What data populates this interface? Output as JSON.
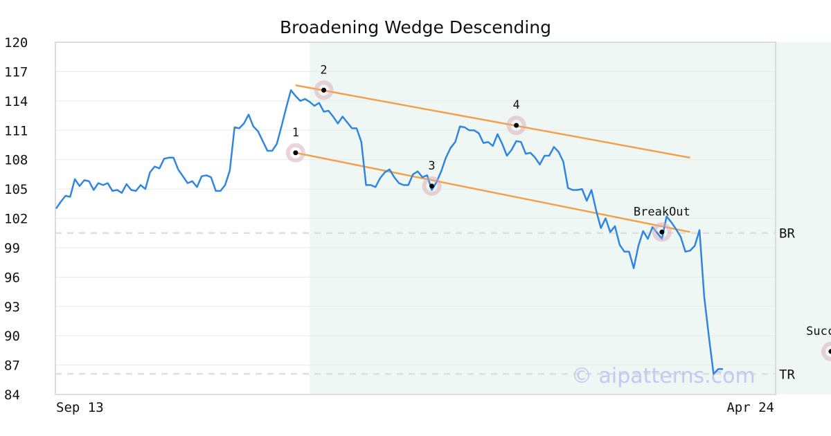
{
  "chart_data": {
    "type": "line",
    "title": "Broadening Wedge Descending",
    "xlabel": "",
    "ylabel": "",
    "x_tick_labels": [
      "Sep 13",
      "Apr 24"
    ],
    "y_ticks": [
      "84",
      "87",
      "90",
      "93",
      "96",
      "99",
      "102",
      "105",
      "108",
      "111",
      "114",
      "117",
      "120"
    ],
    "ylim": [
      84,
      120
    ],
    "grid": "horizontal",
    "shaded_region_index": [
      54,
      179
    ],
    "series": [
      {
        "color": "#2f86e0",
        "values": [
          103.0,
          103.7,
          104.3,
          104.2,
          106.0,
          105.3,
          105.9,
          105.8,
          104.9,
          105.6,
          105.4,
          105.6,
          104.8,
          104.9,
          104.6,
          105.5,
          104.9,
          104.8,
          105.4,
          105.0,
          106.7,
          107.3,
          107.1,
          108.1,
          108.2,
          108.2,
          107.0,
          106.3,
          105.6,
          105.8,
          105.2,
          106.3,
          106.4,
          106.2,
          104.8,
          104.8,
          105.4,
          106.9,
          111.3,
          111.2,
          111.7,
          112.6,
          111.4,
          110.9,
          109.9,
          108.9,
          108.9,
          109.6,
          111.4,
          113.3,
          115.1,
          114.5,
          114.0,
          114.2,
          113.9,
          113.5,
          113.8,
          112.9,
          113.0,
          112.4,
          111.7,
          112.4,
          111.8,
          111.2,
          111.2,
          109.8,
          105.4,
          105.4,
          105.2,
          106.1,
          106.7,
          107.0,
          106.2,
          105.6,
          105.4,
          105.4,
          106.5,
          106.8,
          106.2,
          106.4,
          104.9,
          105.7,
          106.8,
          108.2,
          109.2,
          109.8,
          111.4,
          111.3,
          111.0,
          111.0,
          110.7,
          109.7,
          109.8,
          109.4,
          110.6,
          109.6,
          108.4,
          109.0,
          109.9,
          109.8,
          108.6,
          108.7,
          108.2,
          107.5,
          108.4,
          108.4,
          109.3,
          108.8,
          107.8,
          105.1,
          104.9,
          104.9,
          105.0,
          103.8,
          104.9,
          102.8,
          101.0,
          102.0,
          100.6,
          101.2,
          99.3,
          98.6,
          98.6,
          96.9,
          99.2,
          100.7,
          99.9,
          101.1,
          100.5,
          99.9,
          102.2,
          101.6,
          100.9,
          100.1,
          98.6,
          98.7,
          99.2,
          100.8,
          94.0,
          89.9,
          86.1,
          86.6,
          86.6
        ]
      }
    ],
    "trendlines": [
      {
        "color": "#f4a04a",
        "from": {
          "index": 51,
          "y": 115.6
        },
        "to": {
          "index": 135,
          "y": 108.2
        }
      },
      {
        "color": "#f4a04a",
        "from": {
          "index": 51,
          "y": 108.7
        },
        "to": {
          "index": 135,
          "y": 100.6
        }
      }
    ],
    "reference_lines": [
      {
        "label": "BR",
        "y": 100.5
      },
      {
        "label": "TR",
        "y": 86.1
      }
    ],
    "annotations": [
      {
        "label": "1",
        "index": 51,
        "y": 108.7
      },
      {
        "label": "2",
        "index": 57,
        "y": 115.1
      },
      {
        "label": "3",
        "index": 80,
        "y": 105.3
      },
      {
        "label": "4",
        "index": 98,
        "y": 111.5
      },
      {
        "label": "BreakOut",
        "index": 129,
        "y": 100.6
      },
      {
        "label": "Success",
        "index": 165,
        "y": 88.4
      }
    ],
    "watermark": "© aipatterns.com"
  }
}
